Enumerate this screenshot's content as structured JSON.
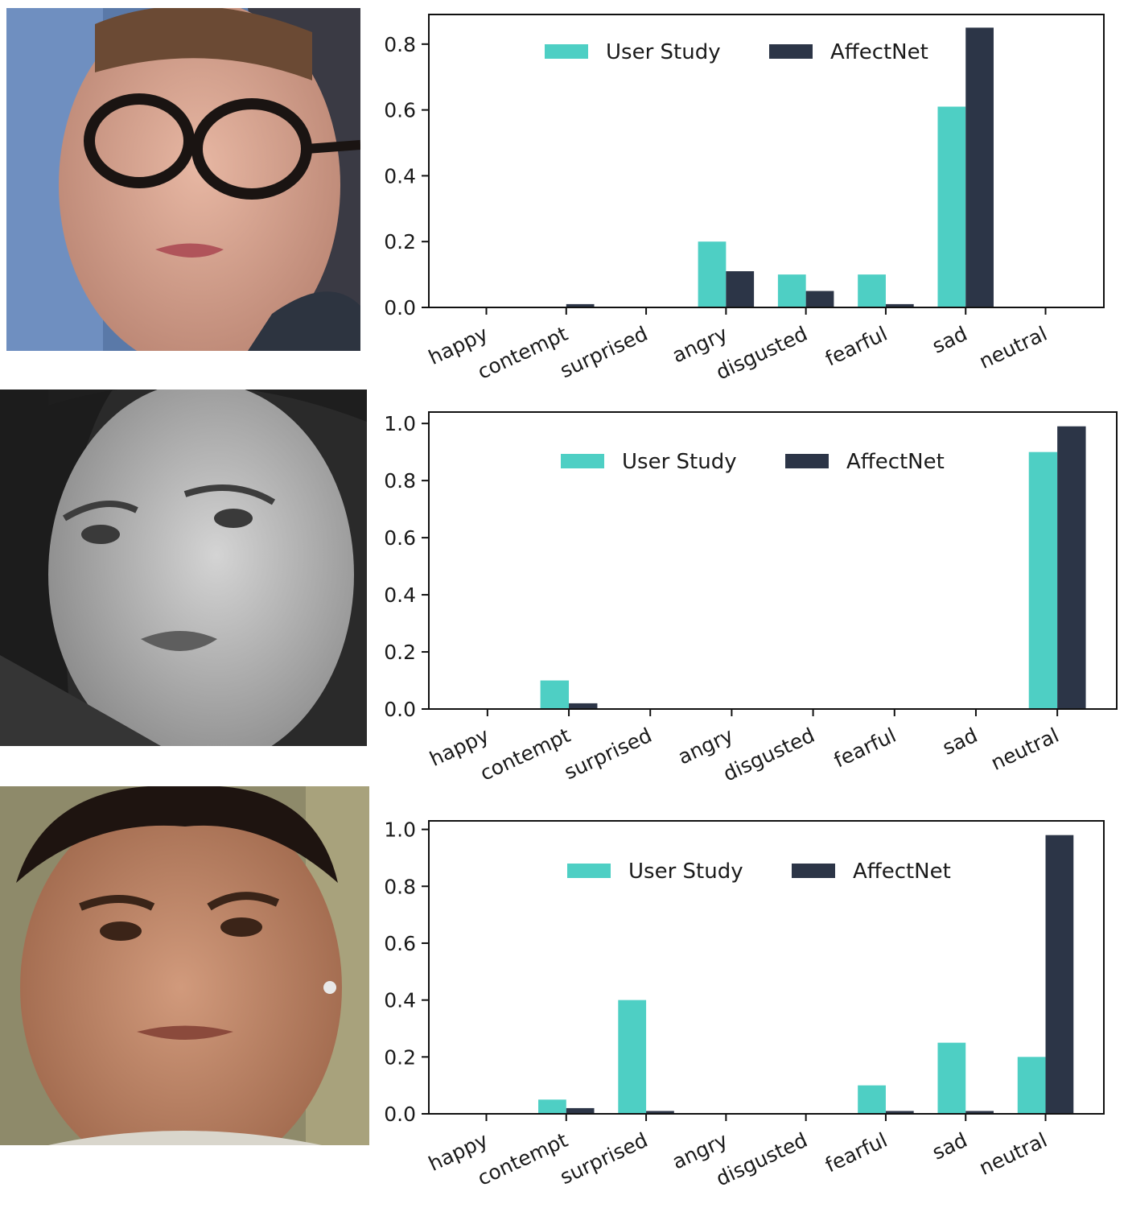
{
  "colors": {
    "user_study": "#4ecfc4",
    "affectnet": "#2c3547",
    "axis": "#111111"
  },
  "faces": [
    {
      "icon": "crying-woman-with-glasses-photo",
      "tone": "color"
    },
    {
      "icon": "woman-grayscale-portrait-photo",
      "tone": "grayscale"
    },
    {
      "icon": "young-man-portrait-photo",
      "tone": "color"
    }
  ],
  "chart_data": [
    {
      "type": "bar",
      "categories": [
        "happy",
        "contempt",
        "surprised",
        "angry",
        "disgusted",
        "fearful",
        "sad",
        "neutral"
      ],
      "series": [
        {
          "name": "User Study",
          "values": [
            0,
            0,
            0,
            0.2,
            0.1,
            0.1,
            0.61,
            0
          ]
        },
        {
          "name": "AffectNet",
          "values": [
            0,
            0.01,
            0,
            0.11,
            0.05,
            0.01,
            0.85,
            0
          ]
        }
      ],
      "ylim": [
        0,
        0.89
      ],
      "yticks": [
        "0.0",
        "0.2",
        "0.4",
        "0.6",
        "0.8"
      ],
      "ytick_values": [
        0,
        0.2,
        0.4,
        0.6,
        0.8
      ],
      "legend": "top-center",
      "grid": false
    },
    {
      "type": "bar",
      "categories": [
        "happy",
        "contempt",
        "surprised",
        "angry",
        "disgusted",
        "fearful",
        "sad",
        "neutral"
      ],
      "series": [
        {
          "name": "User Study",
          "values": [
            0,
            0.1,
            0,
            0,
            0,
            0,
            0,
            0.9
          ]
        },
        {
          "name": "AffectNet",
          "values": [
            0,
            0.02,
            0,
            0,
            0,
            0,
            0,
            0.99
          ]
        }
      ],
      "ylim": [
        0,
        1.04
      ],
      "yticks": [
        "0.0",
        "0.2",
        "0.4",
        "0.6",
        "0.8",
        "1.0"
      ],
      "ytick_values": [
        0,
        0.2,
        0.4,
        0.6,
        0.8,
        1.0
      ],
      "legend": "top-center",
      "grid": false
    },
    {
      "type": "bar",
      "categories": [
        "happy",
        "contempt",
        "surprised",
        "angry",
        "disgusted",
        "fearful",
        "sad",
        "neutral"
      ],
      "series": [
        {
          "name": "User Study",
          "values": [
            0,
            0.05,
            0.4,
            0,
            0,
            0.1,
            0.25,
            0.2
          ]
        },
        {
          "name": "AffectNet",
          "values": [
            0,
            0.02,
            0.01,
            0,
            0,
            0.01,
            0.01,
            0.98
          ]
        }
      ],
      "ylim": [
        0,
        1.03
      ],
      "yticks": [
        "0.0",
        "0.2",
        "0.4",
        "0.6",
        "0.8",
        "1.0"
      ],
      "ytick_values": [
        0,
        0.2,
        0.4,
        0.6,
        0.8,
        1.0
      ],
      "legend": "top-center",
      "grid": false
    }
  ]
}
